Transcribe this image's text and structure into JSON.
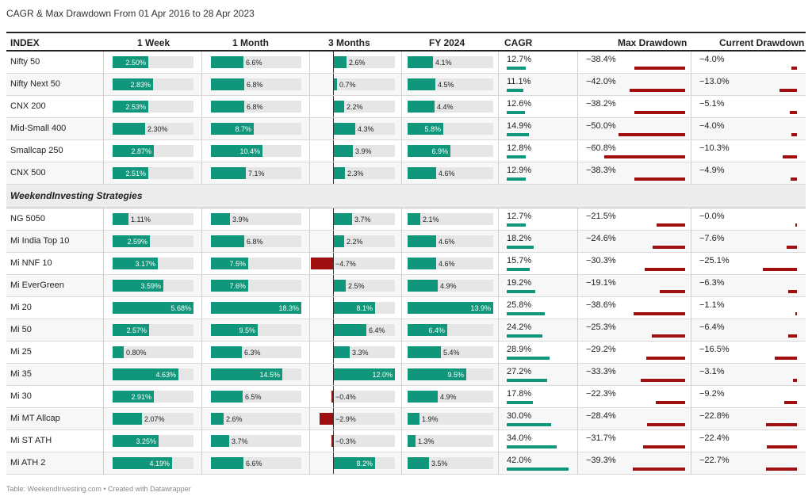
{
  "title": "CAGR & Max Drawdown From 01 Apr 2016 to 28 Apr 2023",
  "footer": "Table: WeekendInvesting.com • Created with Datawrapper",
  "headers": [
    "INDEX",
    "1 Week",
    "1 Month",
    "3 Months",
    "FY 2024",
    "CAGR",
    "Max Drawdown",
    "Current Drawdown"
  ],
  "section_label": "WeekendInvesting Strategies",
  "colors": {
    "positive": "#10967a",
    "negative": "#a00f0f",
    "track": "#e6e6e6"
  },
  "chart_data": {
    "type": "table",
    "columns": [
      "1 Week",
      "1 Month",
      "3 Months",
      "FY 2024",
      "CAGR",
      "Max Drawdown",
      "Current Drawdown"
    ],
    "rows": [
      {
        "name": "Nifty 50",
        "w1": "2.50%",
        "m1": "6.6%",
        "m3": "2.6%",
        "fy": "4.1%",
        "cagr": "12.7%",
        "mdd": "−38.4%",
        "cdd": "−4.0%",
        "v": [
          2.5,
          6.6,
          2.6,
          4.1,
          12.7,
          38.4,
          4.0
        ]
      },
      {
        "name": "Nifty Next 50",
        "w1": "2.83%",
        "m1": "6.8%",
        "m3": "0.7%",
        "fy": "4.5%",
        "cagr": "11.1%",
        "mdd": "−42.0%",
        "cdd": "−13.0%",
        "v": [
          2.83,
          6.8,
          0.7,
          4.5,
          11.1,
          42.0,
          13.0
        ]
      },
      {
        "name": "CNX 200",
        "w1": "2.53%",
        "m1": "6.8%",
        "m3": "2.2%",
        "fy": "4.4%",
        "cagr": "12.6%",
        "mdd": "−38.2%",
        "cdd": "−5.1%",
        "v": [
          2.53,
          6.8,
          2.2,
          4.4,
          12.6,
          38.2,
          5.1
        ]
      },
      {
        "name": "Mid-Small 400",
        "w1": "2.30%",
        "m1": "8.7%",
        "m3": "4.3%",
        "fy": "5.8%",
        "cagr": "14.9%",
        "mdd": "−50.0%",
        "cdd": "−4.0%",
        "v": [
          2.3,
          8.7,
          4.3,
          5.8,
          14.9,
          50.0,
          4.0
        ]
      },
      {
        "name": "Smallcap 250",
        "w1": "2.87%",
        "m1": "10.4%",
        "m3": "3.9%",
        "fy": "6.9%",
        "cagr": "12.8%",
        "mdd": "−60.8%",
        "cdd": "−10.3%",
        "v": [
          2.87,
          10.4,
          3.9,
          6.9,
          12.8,
          60.8,
          10.3
        ]
      },
      {
        "name": "CNX 500",
        "w1": "2.51%",
        "m1": "7.1%",
        "m3": "2.3%",
        "fy": "4.6%",
        "cagr": "12.9%",
        "mdd": "−38.3%",
        "cdd": "−4.9%",
        "v": [
          2.51,
          7.1,
          2.3,
          4.6,
          12.9,
          38.3,
          4.9
        ]
      },
      {
        "section": true
      },
      {
        "name": "NG 5050",
        "w1": "1.11%",
        "m1": "3.9%",
        "m3": "3.7%",
        "fy": "2.1%",
        "cagr": "12.7%",
        "mdd": "−21.5%",
        "cdd": "−0.0%",
        "v": [
          1.11,
          3.9,
          3.7,
          2.1,
          12.7,
          21.5,
          0.0
        ]
      },
      {
        "name": "Mi India Top 10",
        "w1": "2.59%",
        "m1": "6.8%",
        "m3": "2.2%",
        "fy": "4.6%",
        "cagr": "18.2%",
        "mdd": "−24.6%",
        "cdd": "−7.6%",
        "v": [
          2.59,
          6.8,
          2.2,
          4.6,
          18.2,
          24.6,
          7.6
        ]
      },
      {
        "name": "Mi NNF 10",
        "w1": "3.17%",
        "m1": "7.5%",
        "m3": "−4.7%",
        "fy": "4.6%",
        "cagr": "15.7%",
        "mdd": "−30.3%",
        "cdd": "−25.1%",
        "v": [
          3.17,
          7.5,
          -4.7,
          4.6,
          15.7,
          30.3,
          25.1
        ]
      },
      {
        "name": "Mi EverGreen",
        "w1": "3.59%",
        "m1": "7.6%",
        "m3": "2.5%",
        "fy": "4.9%",
        "cagr": "19.2%",
        "mdd": "−19.1%",
        "cdd": "−6.3%",
        "v": [
          3.59,
          7.6,
          2.5,
          4.9,
          19.2,
          19.1,
          6.3
        ]
      },
      {
        "name": "Mi 20",
        "w1": "5.68%",
        "m1": "18.3%",
        "m3": "8.1%",
        "fy": "13.9%",
        "cagr": "25.8%",
        "mdd": "−38.6%",
        "cdd": "−1.1%",
        "v": [
          5.68,
          18.3,
          8.1,
          13.9,
          25.8,
          38.6,
          1.1
        ]
      },
      {
        "name": "Mi 50",
        "w1": "2.57%",
        "m1": "9.5%",
        "m3": "6.4%",
        "fy": "6.4%",
        "cagr": "24.2%",
        "mdd": "−25.3%",
        "cdd": "−6.4%",
        "v": [
          2.57,
          9.5,
          6.4,
          6.4,
          24.2,
          25.3,
          6.4
        ]
      },
      {
        "name": "Mi 25",
        "w1": "0.80%",
        "m1": "6.3%",
        "m3": "3.3%",
        "fy": "5.4%",
        "cagr": "28.9%",
        "mdd": "−29.2%",
        "cdd": "−16.5%",
        "v": [
          0.8,
          6.3,
          3.3,
          5.4,
          28.9,
          29.2,
          16.5
        ]
      },
      {
        "name": "Mi 35",
        "w1": "4.63%",
        "m1": "14.5%",
        "m3": "12.0%",
        "fy": "9.5%",
        "cagr": "27.2%",
        "mdd": "−33.3%",
        "cdd": "−3.1%",
        "v": [
          4.63,
          14.5,
          12.0,
          9.5,
          27.2,
          33.3,
          3.1
        ]
      },
      {
        "name": "Mi 30",
        "w1": "2.91%",
        "m1": "6.5%",
        "m3": "−0.4%",
        "fy": "4.9%",
        "cagr": "17.8%",
        "mdd": "−22.3%",
        "cdd": "−9.2%",
        "v": [
          2.91,
          6.5,
          -0.4,
          4.9,
          17.8,
          22.3,
          9.2
        ]
      },
      {
        "name": "Mi MT Allcap",
        "w1": "2.07%",
        "m1": "2.6%",
        "m3": "−2.9%",
        "fy": "1.9%",
        "cagr": "30.0%",
        "mdd": "−28.4%",
        "cdd": "−22.8%",
        "v": [
          2.07,
          2.6,
          -2.9,
          1.9,
          30.0,
          28.4,
          22.8
        ]
      },
      {
        "name": "Mi ST ATH",
        "w1": "3.25%",
        "m1": "3.7%",
        "m3": "−0.3%",
        "fy": "1.3%",
        "cagr": "34.0%",
        "mdd": "−31.7%",
        "cdd": "−22.4%",
        "v": [
          3.25,
          3.7,
          -0.3,
          1.3,
          34.0,
          31.7,
          22.4
        ]
      },
      {
        "name": "Mi ATH 2",
        "w1": "4.19%",
        "m1": "6.6%",
        "m3": "8.2%",
        "fy": "3.5%",
        "cagr": "42.0%",
        "mdd": "−39.3%",
        "cdd": "−22.7%",
        "v": [
          4.19,
          6.6,
          8.2,
          3.5,
          42.0,
          39.3,
          22.7
        ]
      }
    ]
  }
}
